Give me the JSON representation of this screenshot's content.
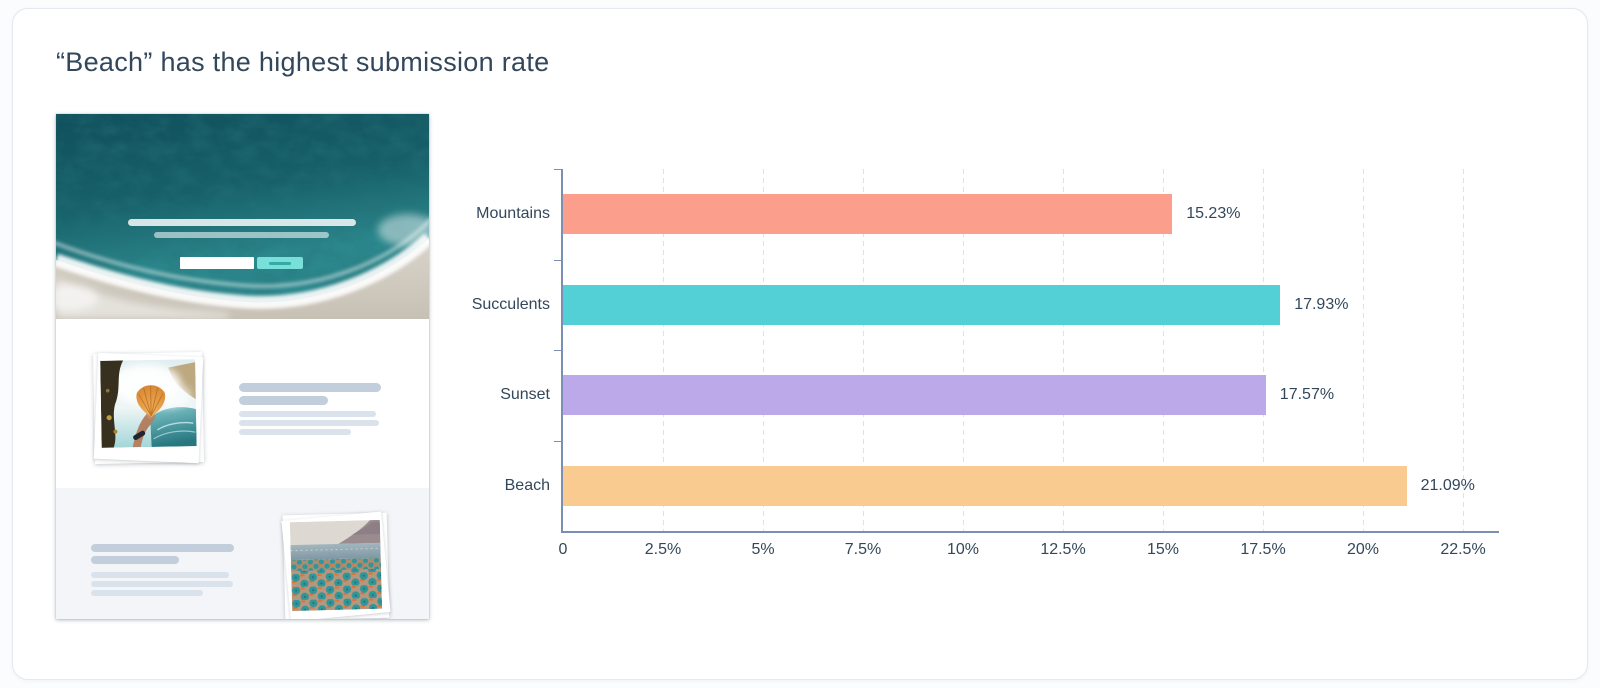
{
  "report": {
    "title": "“Beach” has the highest submission rate"
  },
  "preview": {
    "kind": "landing-page-mockup",
    "sections": [
      "hero-ocean-aerial-with-signup-form",
      "feature-shell-photo-with-text",
      "feature-beach-umbrellas-photo-with-text"
    ]
  },
  "chart_data": {
    "type": "bar",
    "orientation": "horizontal",
    "title": "“Beach” has the highest submission rate",
    "categories": [
      "Mountains",
      "Succulents",
      "Sunset",
      "Beach"
    ],
    "values": [
      15.23,
      17.93,
      17.57,
      21.09
    ],
    "value_labels": [
      "15.23%",
      "17.93%",
      "17.57%",
      "21.09%"
    ],
    "bar_colors": [
      "#fb9e8c",
      "#52d0d6",
      "#bba9e9",
      "#facb90"
    ],
    "x_tick_labels": [
      "0",
      "2.5%",
      "5%",
      "7.5%",
      "10%",
      "12.5%",
      "15%",
      "17.5%",
      "20%",
      "22.5%"
    ],
    "x_tick_values": [
      0,
      2.5,
      5,
      7.5,
      10,
      12.5,
      15,
      17.5,
      20,
      22.5
    ],
    "xlim": [
      0,
      22.5
    ],
    "xlabel": "",
    "ylabel": "",
    "grid": "dashed-vertical",
    "legend": "none",
    "axis_color": "#7a90b3",
    "grid_color": "#d9e2ef",
    "label_color": "#33475b"
  }
}
